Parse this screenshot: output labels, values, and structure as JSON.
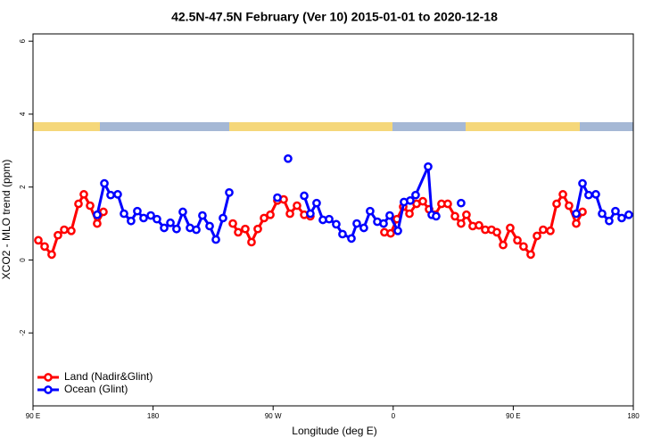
{
  "chart_data": {
    "type": "line",
    "title": "42.5N-47.5N February (Ver 10)   2015-01-01 to 2020-12-18",
    "x_label": "Longitude (deg E)",
    "y_label": "XCO2 - MLO trend (ppm)",
    "xlim": [
      90,
      540
    ],
    "xticks": [
      {
        "value": 90,
        "label": "90 E"
      },
      180,
      {
        "value": 270,
        "label": "90 W"
      },
      {
        "value": 360,
        "label": "0"
      },
      {
        "value": 450,
        "label": "90 E"
      },
      {
        "value": 540,
        "label": "180"
      }
    ],
    "ylim": [
      -4,
      6.2
    ],
    "yticks": [
      -2,
      0,
      2,
      4,
      6
    ],
    "legend": "bottom-left",
    "series": [
      {
        "name": "Land (Nadir&Glint)",
        "color": "#ff0000",
        "x": [
          94.0,
          98.7,
          104.0,
          108.7,
          113.4,
          118.7,
          124.1,
          128.1,
          132.8,
          138.1,
          142.8,
          null,
          239.8,
          243.8,
          249.1,
          253.8,
          258.5,
          263.2,
          267.9,
          273.2,
          277.9,
          282.6,
          287.9,
          293.3,
          297.9,
          null,
          353.4,
          358.1,
          362.8,
          367.5,
          372.2,
          377.5,
          382.2,
          386.9,
          391.5,
          396.2,
          400.9,
          406.3,
          410.9,
          414.9,
          419.6,
          424.3,
          429.0,
          433.7,
          437.7,
          442.4,
          447.7,
          453.1,
          457.7,
          463.1,
          467.8,
          472.4,
          477.8,
          482.5,
          487.2,
          491.8,
          497.2,
          501.9
        ],
        "values": [
          0.54,
          0.37,
          0.15,
          0.68,
          0.83,
          0.8,
          1.54,
          1.8,
          1.49,
          1.0,
          1.32,
          null,
          1.0,
          0.76,
          0.85,
          0.49,
          0.85,
          1.15,
          1.24,
          1.63,
          1.66,
          1.27,
          1.49,
          1.24,
          1.2,
          null,
          0.76,
          0.73,
          1.12,
          1.46,
          1.27,
          1.54,
          1.61,
          1.39,
          1.24,
          1.54,
          1.54,
          1.2,
          1.0,
          1.24,
          0.93,
          0.95,
          0.83,
          0.83,
          0.76,
          0.41,
          0.88,
          0.54,
          0.37,
          0.15,
          0.66,
          0.83,
          0.8,
          1.54,
          1.8,
          1.49,
          1.0,
          1.32
        ]
      },
      {
        "name": "Ocean (Glint)",
        "color": "#0000ff",
        "x": [
          138.1,
          143.5,
          148.2,
          153.5,
          158.2,
          163.5,
          168.2,
          172.9,
          178.3,
          182.9,
          188.3,
          193.0,
          197.6,
          202.3,
          207.7,
          212.4,
          217.0,
          222.4,
          227.1,
          232.4,
          237.1,
          null,
          273.2,
          null,
          281.2,
          null,
          293.3,
          297.9,
          302.6,
          307.3,
          312.0,
          317.3,
          322.0,
          328.7,
          332.7,
          338.0,
          342.7,
          348.1,
          352.8,
          357.4,
          363.5,
          368.1,
          372.8,
          376.8,
          386.2,
          388.9,
          392.2,
          null,
          410.9,
          null,
          497.2,
          501.9,
          506.5,
          511.9,
          516.6,
          521.9,
          526.6,
          531.3,
          536.6
        ],
        "values": [
          1.24,
          2.1,
          1.78,
          1.8,
          1.27,
          1.07,
          1.34,
          1.15,
          1.22,
          1.12,
          0.88,
          1.02,
          0.85,
          1.32,
          0.88,
          0.83,
          1.22,
          0.93,
          0.56,
          1.15,
          1.85,
          null,
          1.71,
          null,
          2.78,
          null,
          1.76,
          1.27,
          1.56,
          1.1,
          1.12,
          0.98,
          0.71,
          0.59,
          1.0,
          0.88,
          1.34,
          1.05,
          1.0,
          1.22,
          0.8,
          1.59,
          1.63,
          1.78,
          2.56,
          1.24,
          1.2,
          null,
          1.56,
          null,
          1.27,
          2.1,
          1.78,
          1.8,
          1.27,
          1.07,
          1.34,
          1.15,
          1.24
        ]
      }
    ]
  }
}
